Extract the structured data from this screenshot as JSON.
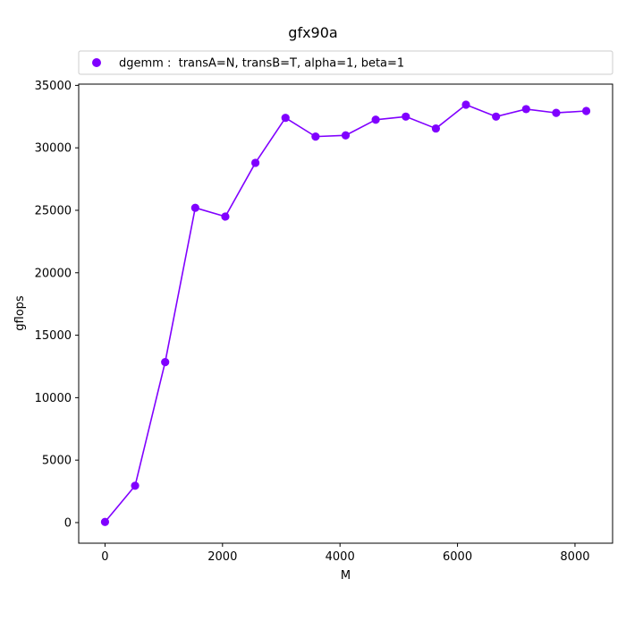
{
  "chart_data": {
    "type": "line",
    "title": "gfx90a",
    "xlabel": "M",
    "ylabel": "gflops",
    "xlim": [
      -448,
      8640
    ],
    "ylim": [
      -1650,
      35100
    ],
    "xticks": [
      0,
      2000,
      4000,
      6000,
      8000
    ],
    "yticks": [
      0,
      5000,
      10000,
      15000,
      20000,
      25000,
      30000,
      35000
    ],
    "grid": false,
    "legend_position": "top",
    "series": [
      {
        "name": "dgemm :  transA=N, transB=T, alpha=1, beta=1",
        "color": "#8000ff",
        "marker": "circle",
        "x": [
          0,
          512,
          1024,
          1536,
          2048,
          2560,
          3072,
          3584,
          4096,
          4608,
          5120,
          5632,
          6144,
          6656,
          7168,
          7680,
          8192
        ],
        "y": [
          50,
          2950,
          12850,
          25200,
          24500,
          28800,
          32400,
          30900,
          31000,
          32250,
          32500,
          31550,
          33450,
          32500,
          33100,
          32800,
          32950
        ]
      }
    ]
  }
}
